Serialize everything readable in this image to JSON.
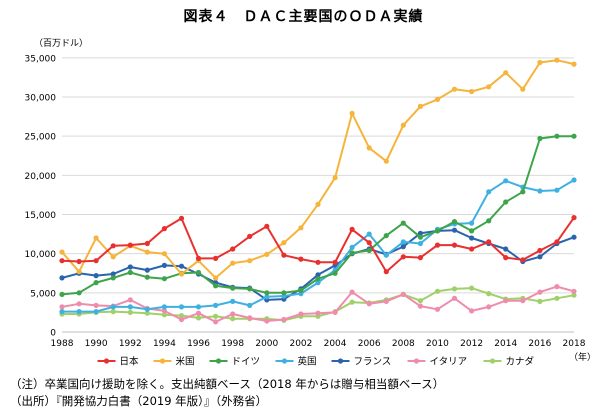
{
  "title": "図表４　ＤＡＣ主要国のＯＤＡ実績",
  "notes": [
    "（注）卒業国向け援助を除く。支出純額ベース（2018 年からは贈与相当額ベース）",
    "（出所）『開発協力白書（2019 年版）』（外務省）"
  ],
  "chart_data": {
    "type": "line",
    "y_unit_label": "（百万ドル）",
    "x_unit_label": "（年）",
    "x": [
      1988,
      1989,
      1990,
      1991,
      1992,
      1993,
      1994,
      1995,
      1996,
      1997,
      1998,
      1999,
      2000,
      2001,
      2002,
      2003,
      2004,
      2005,
      2006,
      2007,
      2008,
      2009,
      2010,
      2011,
      2012,
      2013,
      2014,
      2015,
      2016,
      2017,
      2018
    ],
    "xticks": [
      1988,
      1990,
      1992,
      1994,
      1996,
      1998,
      2000,
      2002,
      2004,
      2006,
      2008,
      2010,
      2012,
      2014,
      2016,
      2018
    ],
    "yticks": [
      0,
      5000,
      10000,
      15000,
      20000,
      25000,
      30000,
      35000
    ],
    "ytick_labels": [
      "0",
      "5,000",
      "10,000",
      "15,000",
      "20,000",
      "25,000",
      "30,000",
      "35,000"
    ],
    "ylim": [
      0,
      36000
    ],
    "grid": "horizontal",
    "legend_position": "bottom",
    "series": [
      {
        "name": "日本",
        "color": "#e8312f",
        "values": [
          9100,
          9000,
          9100,
          11000,
          11100,
          11300,
          13200,
          14500,
          9400,
          9400,
          10600,
          12200,
          13500,
          9800,
          9300,
          8900,
          8900,
          13100,
          11400,
          7700,
          9600,
          9500,
          11100,
          11100,
          10600,
          11500,
          9500,
          9200,
          10400,
          11500,
          14600
        ]
      },
      {
        "name": "米国",
        "color": "#f5b43c",
        "values": [
          10200,
          7700,
          12000,
          9600,
          11000,
          10200,
          10000,
          7400,
          9100,
          6900,
          8800,
          9100,
          9900,
          11400,
          13300,
          16300,
          19700,
          27900,
          23500,
          21800,
          26400,
          28800,
          29700,
          31000,
          30700,
          31300,
          33100,
          31000,
          34400,
          34700,
          34200
        ]
      },
      {
        "name": "ドイツ",
        "color": "#3ea44a",
        "values": [
          4800,
          5000,
          6300,
          6900,
          7600,
          7000,
          6800,
          7500,
          7600,
          5900,
          5600,
          5500,
          5000,
          5000,
          5300,
          6800,
          7500,
          10100,
          10400,
          12300,
          13900,
          12100,
          12900,
          14100,
          12900,
          14200,
          16600,
          17900,
          24700,
          25000,
          25000
        ]
      },
      {
        "name": "英国",
        "color": "#3fb0e2",
        "values": [
          2600,
          2600,
          2600,
          3200,
          3200,
          2900,
          3200,
          3200,
          3200,
          3400,
          3900,
          3400,
          4500,
          4600,
          4900,
          6300,
          7900,
          10800,
          12500,
          9800,
          11500,
          11300,
          13100,
          13800,
          13900,
          17900,
          19300,
          18500,
          18000,
          18100,
          19400
        ]
      },
      {
        "name": "フランス",
        "color": "#2b64ad",
        "values": [
          6900,
          7500,
          7200,
          7400,
          8300,
          7900,
          8500,
          8400,
          7400,
          6300,
          5700,
          5600,
          4100,
          4200,
          5500,
          7300,
          8500,
          10000,
          10600,
          9900,
          10900,
          12600,
          12900,
          13000,
          12000,
          11300,
          10600,
          9000,
          9600,
          11300,
          12100
        ]
      },
      {
        "name": "イタリア",
        "color": "#f08cab",
        "values": [
          3200,
          3600,
          3400,
          3300,
          4100,
          3000,
          2700,
          1600,
          2400,
          1300,
          2300,
          1800,
          1400,
          1600,
          2300,
          2400,
          2500,
          5100,
          3600,
          3900,
          4800,
          3300,
          2900,
          4300,
          2700,
          3200,
          4000,
          4000,
          5100,
          5800,
          5200
        ]
      },
      {
        "name": "カナダ",
        "color": "#9fd06a",
        "values": [
          2300,
          2300,
          2500,
          2600,
          2500,
          2400,
          2200,
          2100,
          1800,
          2000,
          1700,
          1700,
          1700,
          1500,
          2000,
          2000,
          2600,
          3800,
          3700,
          4100,
          4800,
          4000,
          5200,
          5500,
          5600,
          4900,
          4200,
          4300,
          3900,
          4300,
          4700
        ]
      }
    ]
  }
}
